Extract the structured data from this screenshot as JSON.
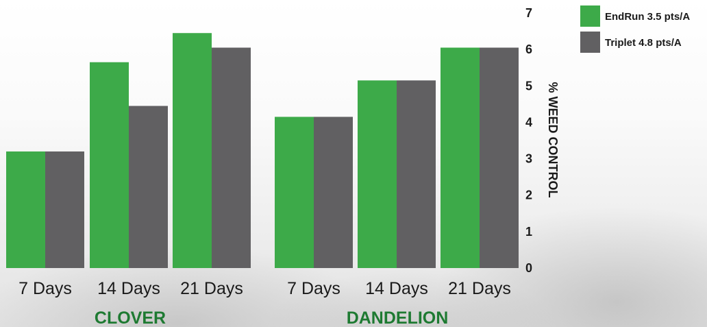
{
  "chart_data": {
    "type": "bar",
    "ylabel": "% WEED CONTROL",
    "ylim": [
      0,
      7
    ],
    "yticks": [
      0,
      1,
      2,
      3,
      4,
      5,
      6,
      7
    ],
    "y_axis_position": "right",
    "legend_position": "top-right",
    "grid": false,
    "colors": {
      "EndRun 3.5 pts/A": "#3daa49",
      "Triplet 4.8 pts/A": "#616062",
      "group_label": "#1e7a32"
    },
    "groups": [
      {
        "label": "CLOVER",
        "categories": [
          "7 Days",
          "14 Days",
          "21 Days"
        ],
        "series": [
          {
            "name": "EndRun 3.5 pts/A",
            "values": [
              3.2,
              5.65,
              6.45
            ]
          },
          {
            "name": "Triplet 4.8 pts/A",
            "values": [
              3.2,
              4.45,
              6.05
            ]
          }
        ]
      },
      {
        "label": "DANDELION",
        "categories": [
          "7 Days",
          "14 Days",
          "21 Days"
        ],
        "series": [
          {
            "name": "EndRun 3.5 pts/A",
            "values": [
              4.15,
              5.15,
              6.05
            ]
          },
          {
            "name": "Triplet 4.8 pts/A",
            "values": [
              4.15,
              5.15,
              6.05
            ]
          }
        ]
      }
    ]
  }
}
